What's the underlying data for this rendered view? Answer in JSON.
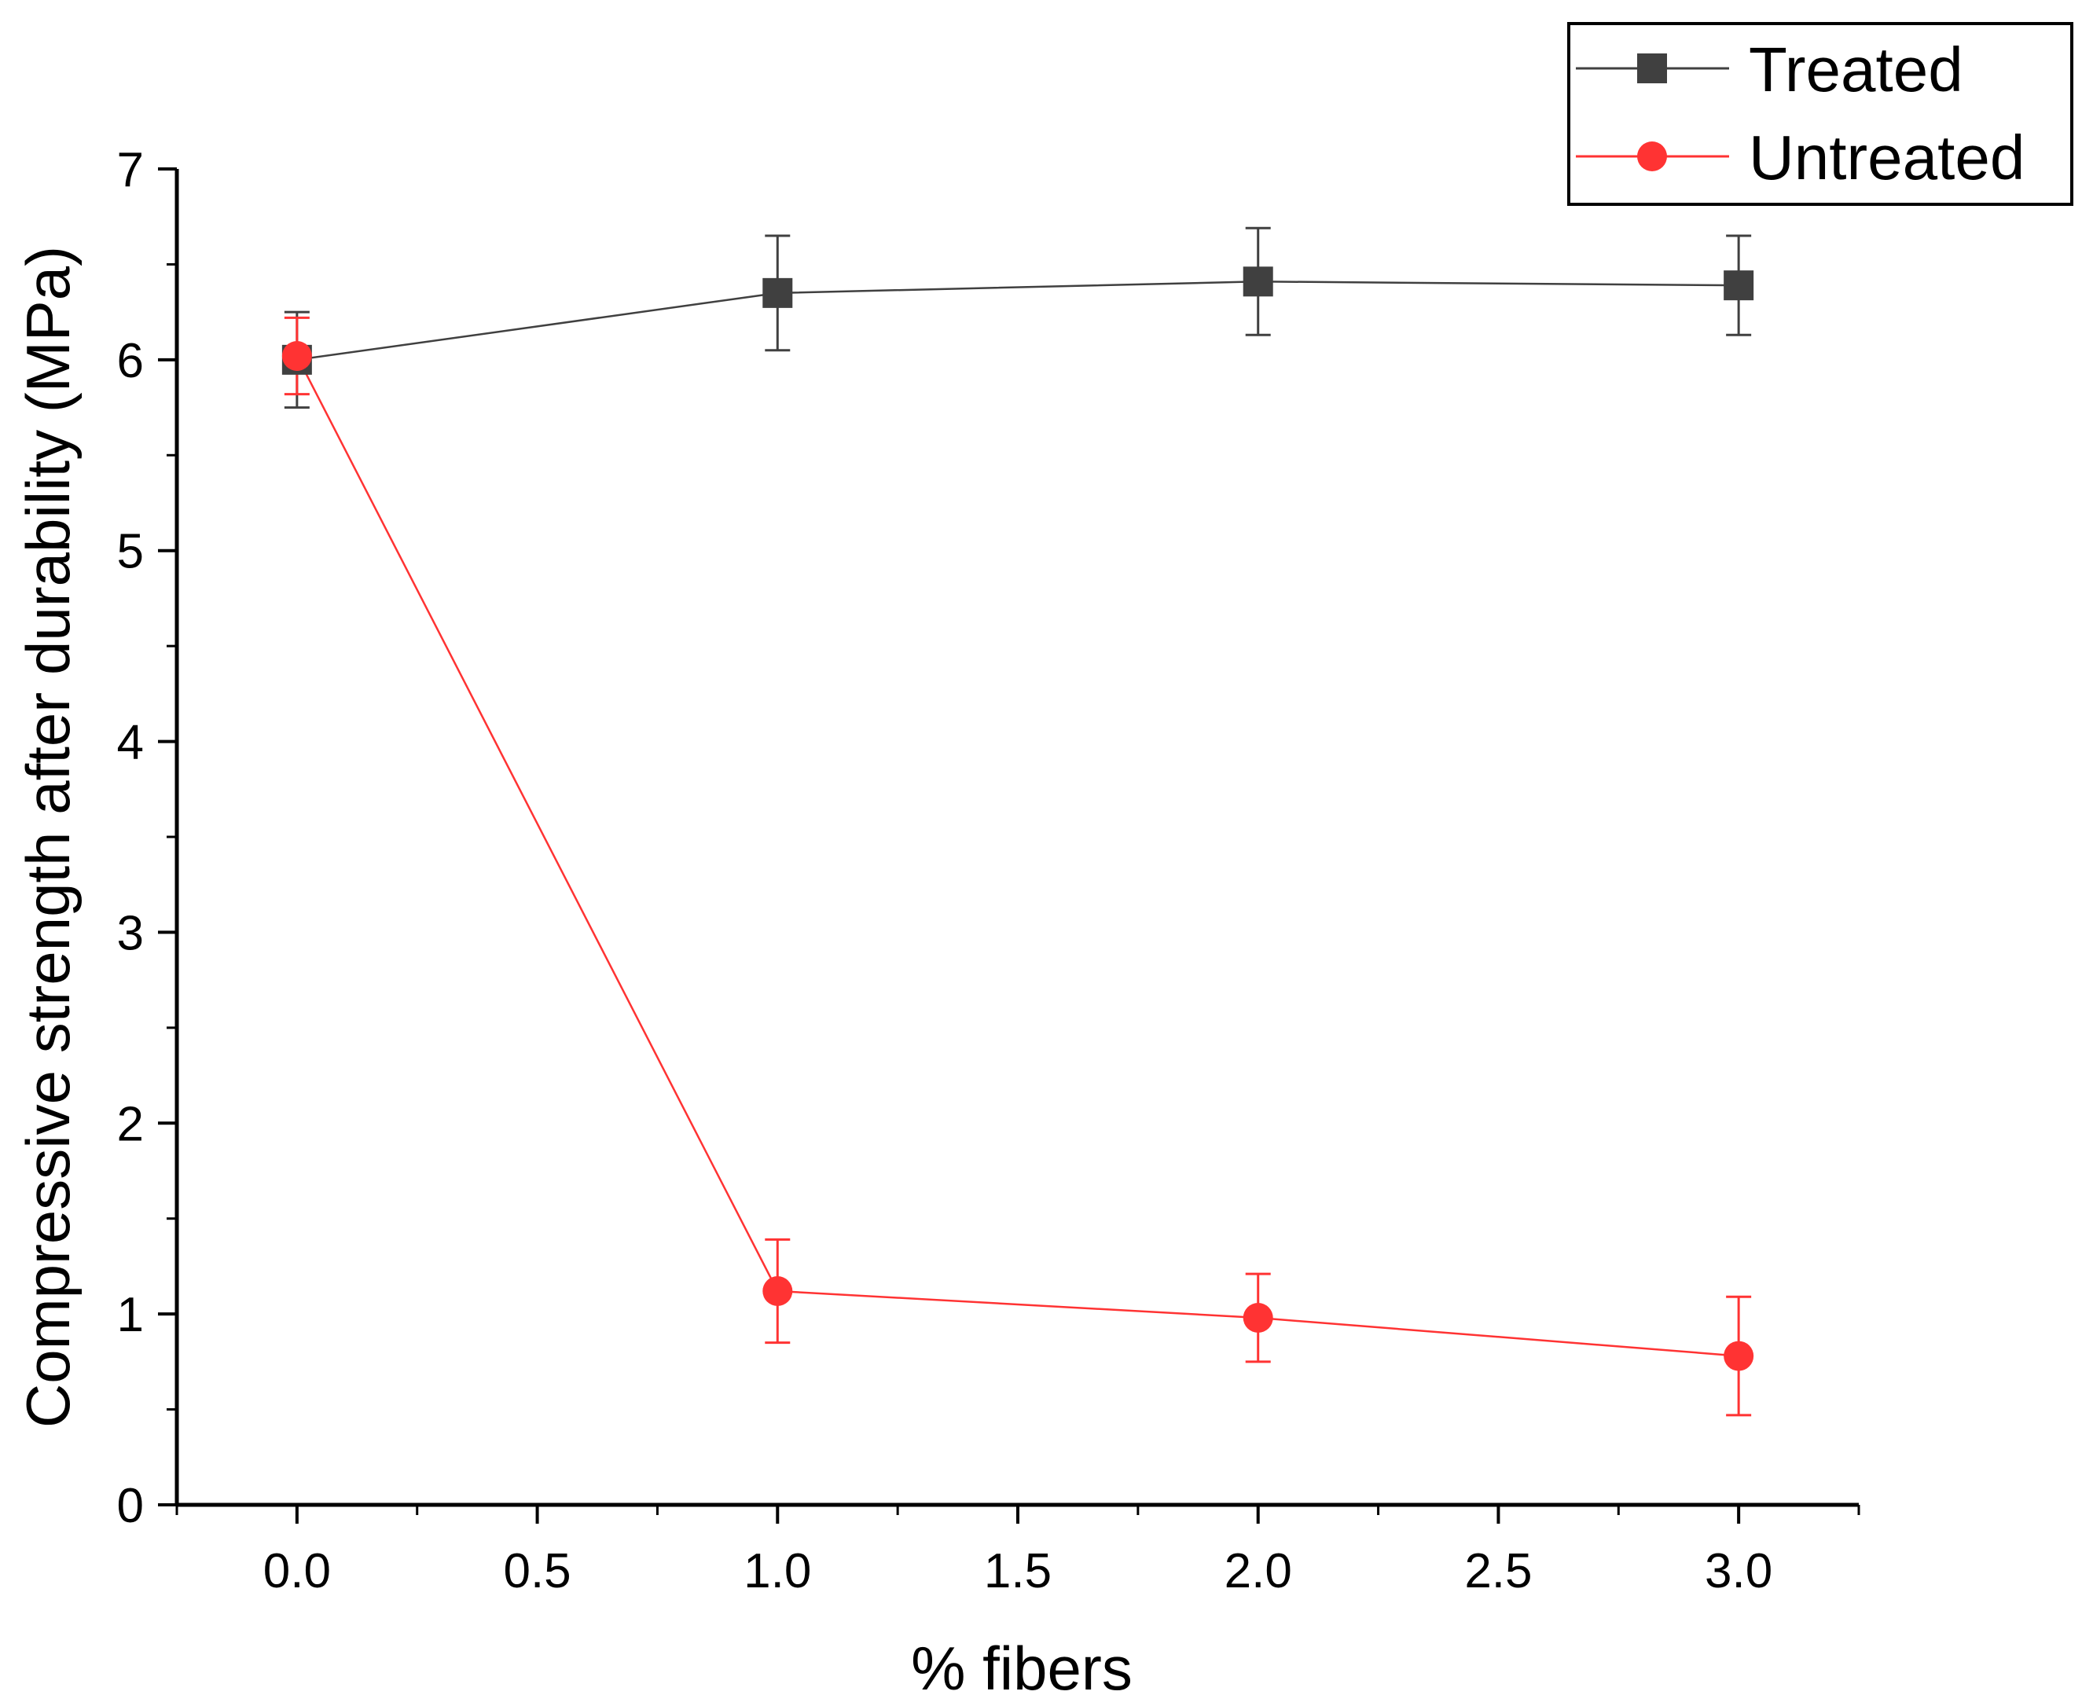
{
  "chart_data": {
    "type": "line",
    "title": "",
    "xlabel": "% fibers",
    "ylabel": "Compressive strength after durability (MPa)",
    "xlim": [
      -0.25,
      3.25
    ],
    "ylim": [
      0,
      7
    ],
    "xticks": [
      0.0,
      0.5,
      1.0,
      1.5,
      2.0,
      2.5,
      3.0
    ],
    "xtick_labels": [
      "0.0",
      "0.5",
      "1.0",
      "1.5",
      "2.0",
      "2.5",
      "3.0"
    ],
    "yticks": [
      0,
      1,
      2,
      3,
      4,
      5,
      6,
      7
    ],
    "ytick_labels": [
      "0",
      "1",
      "2",
      "3",
      "4",
      "5",
      "6",
      "7"
    ],
    "grid": false,
    "legend_position": "top-right",
    "series": [
      {
        "name": "Treated",
        "color": "#404040",
        "marker": "square",
        "x": [
          0,
          1,
          2,
          3
        ],
        "y": [
          6.0,
          6.35,
          6.41,
          6.39
        ],
        "error": [
          0.25,
          0.3,
          0.28,
          0.26
        ]
      },
      {
        "name": "Untreated",
        "color": "#ff3333",
        "marker": "circle",
        "x": [
          0,
          1,
          2,
          3
        ],
        "y": [
          6.02,
          1.12,
          0.98,
          0.78
        ],
        "error": [
          0.2,
          0.27,
          0.23,
          0.31
        ]
      }
    ]
  }
}
